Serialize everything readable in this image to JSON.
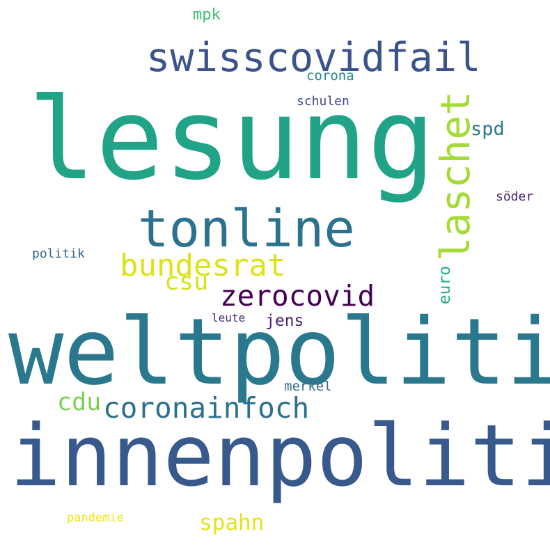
{
  "words": [
    {
      "text": "lesung",
      "color": "#20a386"
    },
    {
      "text": "weltpolitik",
      "color": "#2a788e"
    },
    {
      "text": "innenpolitik",
      "color": "#38598c"
    },
    {
      "text": "swisscovidfail",
      "color": "#3b528b"
    },
    {
      "text": "tonline",
      "color": "#2c728e"
    },
    {
      "text": "laschet",
      "color": "#a5db36"
    },
    {
      "text": "bundesrat",
      "color": "#dde318"
    },
    {
      "text": "zerocovid",
      "color": "#440154"
    },
    {
      "text": "coronainfoch",
      "color": "#2d708e"
    },
    {
      "text": "csu",
      "color": "#d5e21a"
    },
    {
      "text": "spahn",
      "color": "#e2e418"
    },
    {
      "text": "cdu",
      "color": "#7ad151"
    },
    {
      "text": "spd",
      "color": "#2a788e"
    },
    {
      "text": "jens",
      "color": "#482475"
    },
    {
      "text": "euro",
      "color": "#29af7f"
    },
    {
      "text": "mpk",
      "color": "#3fbc73"
    },
    {
      "text": "corona",
      "color": "#23888e"
    },
    {
      "text": "schulen",
      "color": "#3e4989"
    },
    {
      "text": "söder",
      "color": "#482173"
    },
    {
      "text": "politik",
      "color": "#31688e"
    },
    {
      "text": "leute",
      "color": "#472c7a"
    },
    {
      "text": "merkel",
      "color": "#2f6c8e"
    },
    {
      "text": "pandemie",
      "color": "#f1e51d"
    }
  ]
}
